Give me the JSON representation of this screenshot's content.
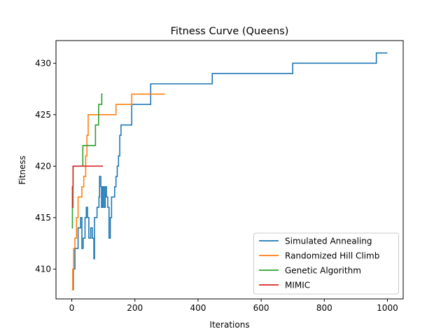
{
  "chart_data": {
    "type": "line",
    "title": "Fitness Curve (Queens)",
    "xlabel": "Iterations",
    "ylabel": "Fitness",
    "xlim": [
      -50,
      1050
    ],
    "ylim": [
      407.1,
      432.2
    ],
    "xticks": [
      0,
      200,
      400,
      600,
      800,
      1000
    ],
    "yticks": [
      410,
      415,
      420,
      425,
      430
    ],
    "grid": false,
    "legend_position": "lower-right",
    "series": [
      {
        "name": "Simulated Annealing",
        "color": "#1f77b4",
        "step": true,
        "points": [
          [
            0,
            408
          ],
          [
            5,
            410
          ],
          [
            10,
            412
          ],
          [
            20,
            414
          ],
          [
            28,
            415
          ],
          [
            32,
            412
          ],
          [
            36,
            413
          ],
          [
            42,
            415
          ],
          [
            46,
            416
          ],
          [
            50,
            415
          ],
          [
            54,
            413
          ],
          [
            57,
            413
          ],
          [
            60,
            414
          ],
          [
            65,
            413
          ],
          [
            70,
            411
          ],
          [
            72,
            415
          ],
          [
            76,
            415
          ],
          [
            80,
            416
          ],
          [
            86,
            417
          ],
          [
            88,
            419
          ],
          [
            92,
            418
          ],
          [
            94,
            416
          ],
          [
            98,
            418
          ],
          [
            102,
            416
          ],
          [
            106,
            418
          ],
          [
            110,
            417
          ],
          [
            114,
            416
          ],
          [
            118,
            413
          ],
          [
            122,
            415
          ],
          [
            126,
            417
          ],
          [
            132,
            417
          ],
          [
            136,
            418
          ],
          [
            140,
            419
          ],
          [
            144,
            420
          ],
          [
            148,
            421
          ],
          [
            152,
            423
          ],
          [
            156,
            424
          ],
          [
            165,
            424
          ],
          [
            170,
            424
          ],
          [
            180,
            424
          ],
          [
            190,
            426
          ],
          [
            220,
            426
          ],
          [
            250,
            428
          ],
          [
            445,
            429
          ],
          [
            700,
            430
          ],
          [
            720,
            430
          ],
          [
            965,
            431
          ],
          [
            1000,
            431
          ]
        ]
      },
      {
        "name": "Randomized Hill Climb",
        "color": "#ff7f0e",
        "step": true,
        "points": [
          [
            0,
            408
          ],
          [
            3,
            410
          ],
          [
            6,
            412
          ],
          [
            10,
            413
          ],
          [
            15,
            415
          ],
          [
            20,
            417
          ],
          [
            28,
            417
          ],
          [
            32,
            418
          ],
          [
            38,
            419
          ],
          [
            44,
            421
          ],
          [
            48,
            423
          ],
          [
            52,
            425
          ],
          [
            100,
            425
          ],
          [
            140,
            426
          ],
          [
            190,
            427
          ],
          [
            295,
            427
          ]
        ]
      },
      {
        "name": "Genetic Algorithm",
        "color": "#2ca02c",
        "step": true,
        "points": [
          [
            0,
            414
          ],
          [
            2,
            416
          ],
          [
            4,
            420
          ],
          [
            30,
            420
          ],
          [
            35,
            422
          ],
          [
            70,
            422
          ],
          [
            75,
            424
          ],
          [
            85,
            426
          ],
          [
            95,
            427
          ],
          [
            98,
            427
          ]
        ]
      },
      {
        "name": "MIMIC",
        "color": "#d62728",
        "step": true,
        "points": [
          [
            0,
            416
          ],
          [
            2,
            418
          ],
          [
            4,
            420
          ],
          [
            99,
            420
          ]
        ]
      }
    ]
  }
}
